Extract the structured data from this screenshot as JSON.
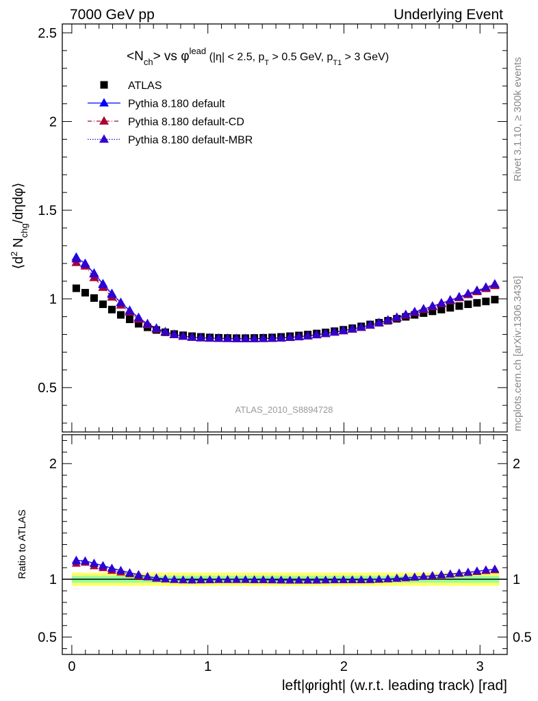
{
  "header": {
    "left": "7000 GeV pp",
    "right": "Underlying Event"
  },
  "side_labels": {
    "rivet": "Rivet 3.1.10, ≥ 300k events",
    "mcplots": "mcplots.cern.ch [arXiv:1306.3436]"
  },
  "analysis_id": "ATLAS_2010_S8894728",
  "chart_data": [
    {
      "type": "scatter",
      "title": "<N_ch> vs φ^lead (|η| < 2.5, p_T > 0.5 GeV, p_T1 > 3 GeV)",
      "ylabel": "⟨d² N_chg/dηdφ⟩",
      "xlabel": "left|φright| (w.r.t. leading track) [rad]",
      "xlim": [
        -0.07,
        3.2
      ],
      "ylim": [
        0.25,
        2.55
      ],
      "yticks": [
        0.5,
        1,
        1.5,
        2,
        2.5
      ],
      "xticks": [
        0,
        1,
        2,
        3
      ],
      "legend_position": "top-left",
      "x": [
        0.0327,
        0.0982,
        0.1636,
        0.2291,
        0.2945,
        0.36,
        0.4254,
        0.4909,
        0.5563,
        0.6218,
        0.6872,
        0.7527,
        0.8181,
        0.8836,
        0.949,
        1.0145,
        1.0799,
        1.1454,
        1.2108,
        1.2763,
        1.3417,
        1.4072,
        1.4726,
        1.5381,
        1.6035,
        1.669,
        1.7344,
        1.7999,
        1.8653,
        1.9308,
        1.9962,
        2.0617,
        2.1271,
        2.1926,
        2.258,
        2.3235,
        2.3889,
        2.4544,
        2.5198,
        2.5853,
        2.6507,
        2.7162,
        2.7816,
        2.8471,
        2.9125,
        2.978,
        3.0434,
        3.1089
      ],
      "series": [
        {
          "name": "ATLAS",
          "color": "#000000",
          "marker": "square",
          "line": "none",
          "values": [
            1.06,
            1.035,
            1.005,
            0.97,
            0.94,
            0.91,
            0.885,
            0.86,
            0.84,
            0.825,
            0.812,
            0.802,
            0.795,
            0.79,
            0.786,
            0.783,
            0.781,
            0.78,
            0.779,
            0.779,
            0.78,
            0.781,
            0.783,
            0.786,
            0.79,
            0.794,
            0.799,
            0.805,
            0.811,
            0.818,
            0.826,
            0.835,
            0.845,
            0.856,
            0.866,
            0.877,
            0.888,
            0.899,
            0.91,
            0.92,
            0.93,
            0.94,
            0.95,
            0.96,
            0.97,
            0.978,
            0.986,
            0.996
          ]
        },
        {
          "name": "Pythia 8.180 default",
          "color": "#0000ff",
          "marker": "triangle",
          "line": "solid",
          "values": [
            1.235,
            1.2,
            1.145,
            1.085,
            1.03,
            0.98,
            0.935,
            0.895,
            0.86,
            0.835,
            0.815,
            0.8,
            0.79,
            0.784,
            0.781,
            0.779,
            0.778,
            0.777,
            0.776,
            0.776,
            0.776,
            0.777,
            0.778,
            0.78,
            0.783,
            0.787,
            0.792,
            0.798,
            0.805,
            0.813,
            0.821,
            0.83,
            0.84,
            0.852,
            0.865,
            0.88,
            0.895,
            0.91,
            0.926,
            0.942,
            0.958,
            0.975,
            0.992,
            1.01,
            1.028,
            1.046,
            1.064,
            1.082
          ]
        },
        {
          "name": "Pythia 8.180 default-CD",
          "color": "#aa0033",
          "marker": "triangle",
          "line": "dashdot",
          "values": [
            1.205,
            1.185,
            1.12,
            1.065,
            1.01,
            0.965,
            0.925,
            0.885,
            0.855,
            0.83,
            0.812,
            0.798,
            0.789,
            0.783,
            0.78,
            0.778,
            0.777,
            0.776,
            0.775,
            0.775,
            0.775,
            0.776,
            0.777,
            0.779,
            0.782,
            0.786,
            0.791,
            0.797,
            0.804,
            0.812,
            0.82,
            0.829,
            0.839,
            0.851,
            0.864,
            0.878,
            0.893,
            0.908,
            0.924,
            0.94,
            0.956,
            0.973,
            0.99,
            1.007,
            1.024,
            1.041,
            1.058,
            1.075
          ]
        },
        {
          "name": "Pythia 8.180 default-MBR",
          "color": "#3300cc",
          "marker": "triangle",
          "line": "dotted",
          "values": [
            1.225,
            1.195,
            1.14,
            1.08,
            1.025,
            0.978,
            0.932,
            0.893,
            0.86,
            0.834,
            0.814,
            0.799,
            0.79,
            0.784,
            0.781,
            0.779,
            0.778,
            0.777,
            0.776,
            0.776,
            0.776,
            0.777,
            0.778,
            0.78,
            0.783,
            0.787,
            0.792,
            0.798,
            0.805,
            0.813,
            0.822,
            0.831,
            0.841,
            0.853,
            0.866,
            0.881,
            0.896,
            0.912,
            0.928,
            0.944,
            0.96,
            0.977,
            0.994,
            1.012,
            1.03,
            1.048,
            1.066,
            1.084
          ]
        }
      ]
    },
    {
      "type": "scatter",
      "ylabel": "Ratio to ATLAS",
      "xlabel": "left|φright| (w.r.t. leading track) [rad]",
      "xlim": [
        -0.07,
        3.2
      ],
      "ylim": [
        0.35,
        2.25
      ],
      "yticks": [
        0.5,
        1,
        2
      ],
      "xticks": [
        0,
        1,
        2,
        3
      ],
      "bands": [
        {
          "name": "outer uncertainty",
          "color": "#ffff66",
          "range": [
            0.943,
            1.057
          ]
        },
        {
          "name": "inner uncertainty",
          "color": "#99ff99",
          "range": [
            0.97,
            1.03
          ]
        }
      ],
      "reference_line": 1
    }
  ]
}
